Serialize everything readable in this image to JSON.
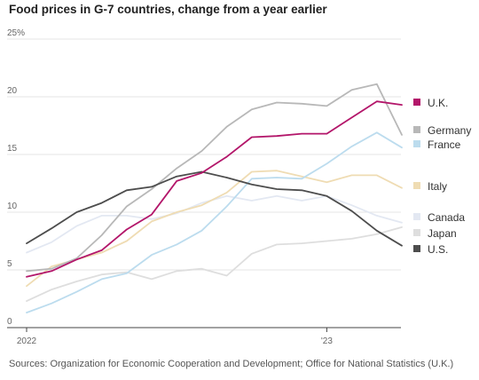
{
  "title": "Food prices in G-7 countries, change from a year earlier",
  "source": "Sources: Organization for Economic Cooperation and Development; Office for National Statistics (U.K.)",
  "chart_data": {
    "type": "line",
    "title": "Food prices in G-7 countries, change from a year earlier",
    "xlabel": "",
    "ylabel": "",
    "ylim": [
      0,
      25
    ],
    "y_ticks": [
      0,
      5,
      10,
      15,
      20,
      25
    ],
    "y_tick_labels": [
      "0",
      "5",
      "10",
      "15",
      "20",
      "25%"
    ],
    "x_tick_labels": [
      "2022",
      "'23"
    ],
    "x": [
      "2022-01",
      "2022-02",
      "2022-03",
      "2022-04",
      "2022-05",
      "2022-06",
      "2022-07",
      "2022-08",
      "2022-09",
      "2022-10",
      "2022-11",
      "2022-12",
      "2023-01",
      "2023-02",
      "2023-03",
      "2023-04"
    ],
    "grid": true,
    "legend_position": "right",
    "series": [
      {
        "name": "Canada",
        "color": "#e3e8f2",
        "values": [
          6.5,
          7.4,
          8.8,
          9.7,
          9.7,
          9.4,
          9.9,
          10.8,
          11.4,
          11.0,
          11.4,
          11.0,
          11.4,
          10.6,
          9.7,
          9.1
        ]
      },
      {
        "name": "Japan",
        "color": "#dedede",
        "values": [
          2.3,
          3.3,
          4.0,
          4.6,
          4.8,
          4.2,
          4.9,
          5.1,
          4.5,
          6.4,
          7.2,
          7.3,
          7.5,
          7.7,
          8.1,
          8.7
        ]
      },
      {
        "name": "Italy",
        "color": "#efdcb3",
        "values": [
          3.6,
          5.3,
          5.9,
          6.5,
          7.5,
          9.2,
          10.0,
          10.6,
          11.7,
          13.5,
          13.6,
          13.1,
          12.6,
          13.2,
          13.2,
          12.1
        ]
      },
      {
        "name": "France",
        "color": "#bcdcee",
        "values": [
          1.3,
          2.1,
          3.1,
          4.2,
          4.7,
          6.3,
          7.2,
          8.4,
          10.5,
          12.9,
          13.0,
          12.9,
          14.2,
          15.7,
          16.9,
          15.6
        ]
      },
      {
        "name": "Germany",
        "color": "#b8b8b8",
        "values": [
          4.9,
          5.1,
          6.0,
          8.0,
          10.5,
          12.0,
          13.8,
          15.3,
          17.4,
          18.9,
          19.5,
          19.4,
          19.2,
          20.6,
          21.1,
          16.7
        ]
      },
      {
        "name": "U.S.",
        "color": "#4d4d4d",
        "values": [
          7.3,
          8.6,
          10.0,
          10.8,
          11.9,
          12.2,
          13.1,
          13.5,
          13.0,
          12.4,
          12.0,
          11.9,
          11.4,
          10.1,
          8.4,
          7.1
        ]
      },
      {
        "name": "U.K.",
        "color": "#b3166a",
        "values": [
          4.4,
          4.9,
          5.9,
          6.7,
          8.5,
          9.8,
          12.7,
          13.4,
          14.8,
          16.5,
          16.6,
          16.8,
          16.8,
          18.2,
          19.6,
          19.3
        ]
      }
    ],
    "legend_order": [
      "U.K.",
      "Germany",
      "France",
      "Italy",
      "Canada",
      "Japan",
      "U.S."
    ]
  }
}
